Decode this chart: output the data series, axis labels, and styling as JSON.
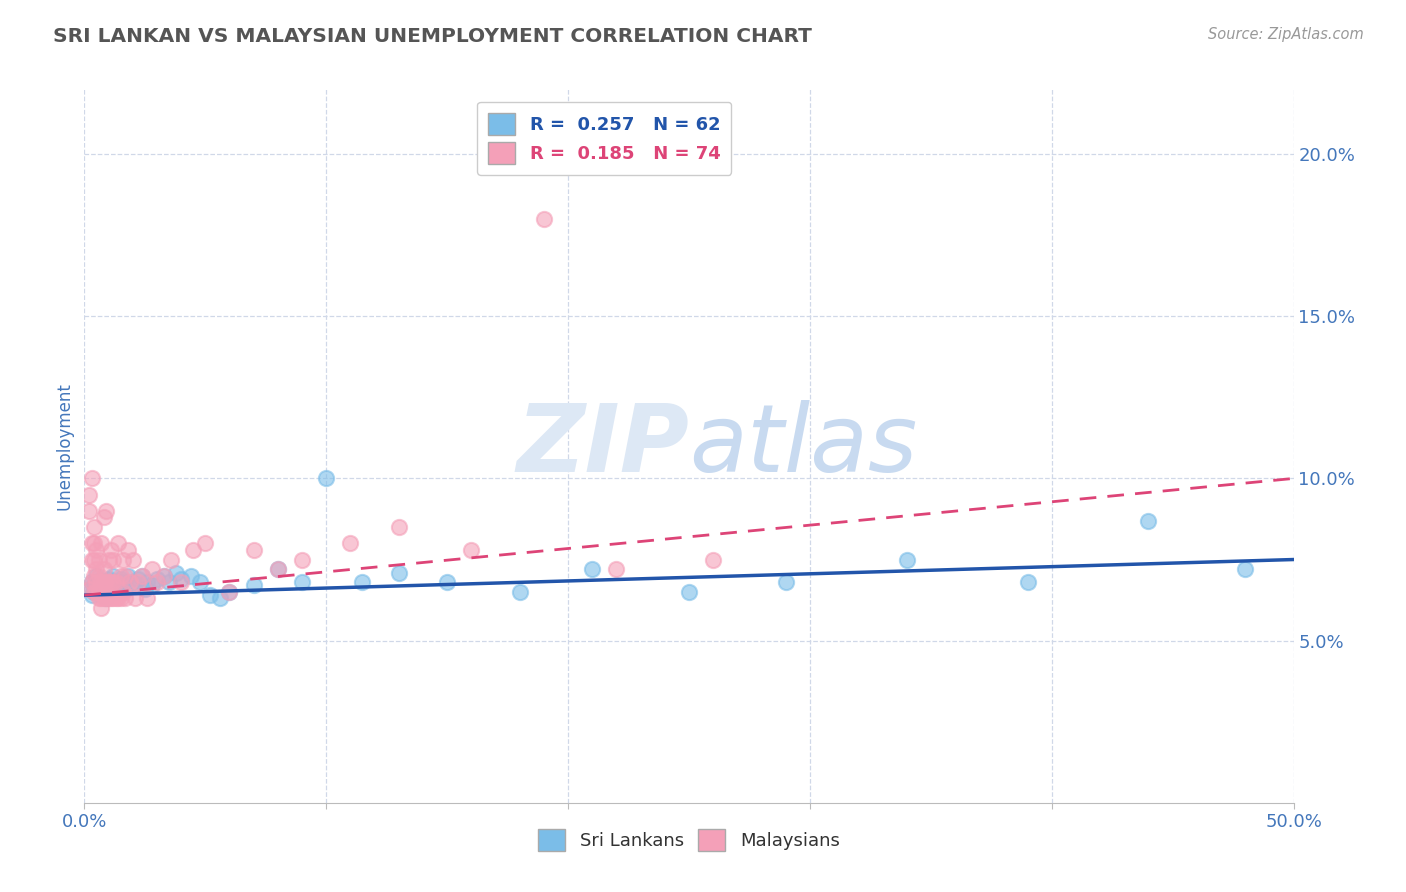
{
  "title": "SRI LANKAN VS MALAYSIAN UNEMPLOYMENT CORRELATION CHART",
  "source_text": "Source: ZipAtlas.com",
  "ylabel": "Unemployment",
  "xlim": [
    0.0,
    0.5
  ],
  "ylim": [
    0.0,
    0.22
  ],
  "yticks": [
    0.05,
    0.1,
    0.15,
    0.2
  ],
  "ytick_labels": [
    "5.0%",
    "10.0%",
    "15.0%",
    "20.0%"
  ],
  "xtick_labels_show": [
    "0.0%",
    "50.0%"
  ],
  "xtick_show": [
    0.0,
    0.5
  ],
  "xtick_minor": [
    0.1,
    0.2,
    0.3,
    0.4
  ],
  "sri_lanka_R": 0.257,
  "sri_lanka_N": 62,
  "malaysia_R": 0.185,
  "malaysia_N": 74,
  "sri_lanka_color": "#7bbde8",
  "malaysia_color": "#f4a0b8",
  "sri_lanka_line_color": "#2255aa",
  "malaysia_line_color": "#dd4477",
  "background_color": "#ffffff",
  "grid_color": "#d0d8e8",
  "title_color": "#555555",
  "tick_label_color": "#4477bb",
  "watermark_color": "#dde8f5",
  "sri_lanka_x": [
    0.002,
    0.003,
    0.003,
    0.004,
    0.004,
    0.005,
    0.005,
    0.005,
    0.006,
    0.006,
    0.007,
    0.007,
    0.008,
    0.008,
    0.009,
    0.01,
    0.01,
    0.01,
    0.011,
    0.011,
    0.012,
    0.012,
    0.013,
    0.013,
    0.014,
    0.015,
    0.015,
    0.016,
    0.017,
    0.018,
    0.019,
    0.02,
    0.022,
    0.024,
    0.025,
    0.026,
    0.028,
    0.03,
    0.033,
    0.035,
    0.038,
    0.04,
    0.044,
    0.048,
    0.052,
    0.056,
    0.06,
    0.07,
    0.08,
    0.09,
    0.1,
    0.115,
    0.13,
    0.15,
    0.18,
    0.21,
    0.25,
    0.29,
    0.34,
    0.39,
    0.44,
    0.48
  ],
  "sri_lanka_y": [
    0.066,
    0.064,
    0.068,
    0.065,
    0.067,
    0.066,
    0.068,
    0.07,
    0.065,
    0.067,
    0.064,
    0.066,
    0.068,
    0.065,
    0.063,
    0.067,
    0.065,
    0.069,
    0.066,
    0.068,
    0.067,
    0.07,
    0.065,
    0.068,
    0.066,
    0.067,
    0.069,
    0.068,
    0.066,
    0.07,
    0.067,
    0.068,
    0.069,
    0.07,
    0.066,
    0.068,
    0.067,
    0.069,
    0.07,
    0.068,
    0.071,
    0.069,
    0.07,
    0.068,
    0.064,
    0.063,
    0.065,
    0.067,
    0.072,
    0.068,
    0.1,
    0.068,
    0.071,
    0.068,
    0.065,
    0.072,
    0.065,
    0.068,
    0.075,
    0.068,
    0.087,
    0.072
  ],
  "malaysia_x": [
    0.002,
    0.002,
    0.002,
    0.003,
    0.003,
    0.003,
    0.003,
    0.004,
    0.004,
    0.004,
    0.004,
    0.004,
    0.005,
    0.005,
    0.005,
    0.005,
    0.006,
    0.006,
    0.006,
    0.006,
    0.007,
    0.007,
    0.007,
    0.007,
    0.008,
    0.008,
    0.008,
    0.008,
    0.009,
    0.009,
    0.009,
    0.01,
    0.01,
    0.01,
    0.011,
    0.011,
    0.011,
    0.012,
    0.012,
    0.012,
    0.013,
    0.013,
    0.014,
    0.014,
    0.015,
    0.015,
    0.016,
    0.016,
    0.017,
    0.017,
    0.018,
    0.019,
    0.02,
    0.021,
    0.022,
    0.024,
    0.026,
    0.028,
    0.03,
    0.033,
    0.036,
    0.04,
    0.045,
    0.05,
    0.06,
    0.07,
    0.08,
    0.09,
    0.11,
    0.13,
    0.16,
    0.19,
    0.22,
    0.26
  ],
  "malaysia_y": [
    0.066,
    0.09,
    0.095,
    0.068,
    0.075,
    0.08,
    0.1,
    0.065,
    0.07,
    0.075,
    0.08,
    0.085,
    0.065,
    0.068,
    0.072,
    0.078,
    0.063,
    0.065,
    0.07,
    0.075,
    0.06,
    0.063,
    0.068,
    0.08,
    0.063,
    0.068,
    0.072,
    0.088,
    0.063,
    0.068,
    0.09,
    0.063,
    0.068,
    0.075,
    0.063,
    0.068,
    0.078,
    0.063,
    0.068,
    0.075,
    0.063,
    0.068,
    0.063,
    0.08,
    0.063,
    0.07,
    0.065,
    0.075,
    0.063,
    0.07,
    0.078,
    0.068,
    0.075,
    0.063,
    0.068,
    0.07,
    0.063,
    0.072,
    0.068,
    0.07,
    0.075,
    0.068,
    0.078,
    0.08,
    0.065,
    0.078,
    0.072,
    0.075,
    0.08,
    0.085,
    0.078,
    0.18,
    0.072,
    0.075
  ],
  "sl_trend_x": [
    0.0,
    0.5
  ],
  "sl_trend_y": [
    0.064,
    0.075
  ],
  "my_trend_x": [
    0.0,
    0.5
  ],
  "my_trend_y": [
    0.064,
    0.1
  ]
}
